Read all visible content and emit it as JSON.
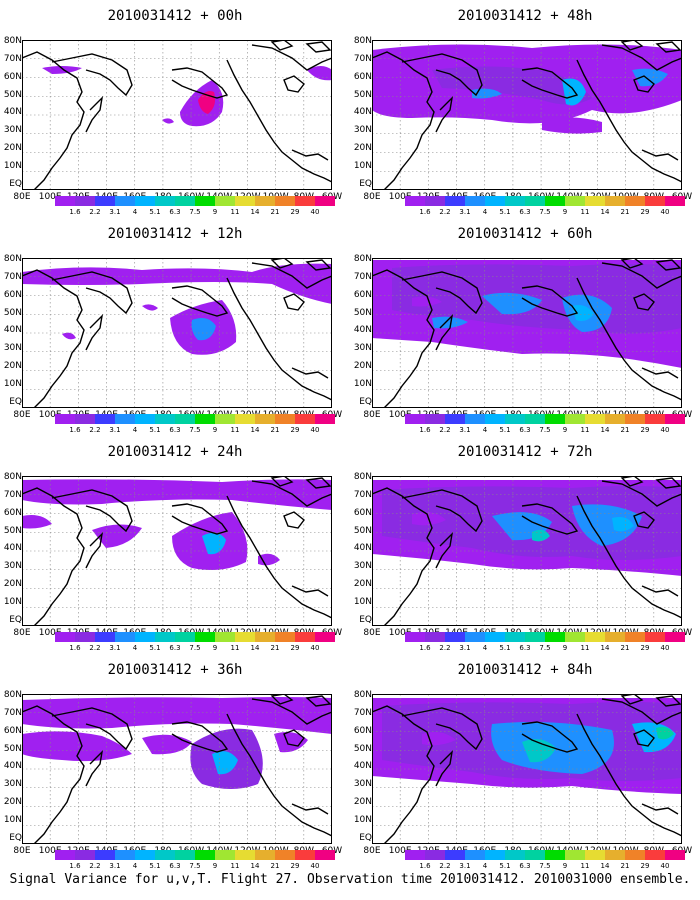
{
  "panels": [
    {
      "title": "2010031412 + 00h"
    },
    {
      "title": "2010031412 + 48h"
    },
    {
      "title": "2010031412 + 12h"
    },
    {
      "title": "2010031412 + 60h"
    },
    {
      "title": "2010031412 + 24h"
    },
    {
      "title": "2010031412 + 72h"
    },
    {
      "title": "2010031412 + 36h"
    },
    {
      "title": "2010031412 + 84h"
    }
  ],
  "lat_labels": [
    "80N",
    "70N",
    "60N",
    "50N",
    "40N",
    "30N",
    "20N",
    "10N",
    "EQ"
  ],
  "lon_labels": [
    "80E",
    "100E",
    "120E",
    "140E",
    "160E",
    "180",
    "160W",
    "140W",
    "120W",
    "100W",
    "80W",
    "60W"
  ],
  "colorbar": {
    "labels": [
      "1.6",
      "2.2",
      "3.1",
      "4",
      "5.1",
      "6.3",
      "7.5",
      "9",
      "11",
      "14",
      "21",
      "29",
      "40"
    ],
    "colors": [
      "#a020f0",
      "#8a2be2",
      "#3c3cff",
      "#1e90ff",
      "#00b4ff",
      "#00c8c8",
      "#00d2a0",
      "#00dc00",
      "#a0e632",
      "#e6dc32",
      "#e6af2d",
      "#f08228",
      "#fa3c3c",
      "#f00082"
    ]
  },
  "caption": "Signal Variance for u,v,T. Flight 27. Observation time 2010031412. 2010031000 ensemble."
}
